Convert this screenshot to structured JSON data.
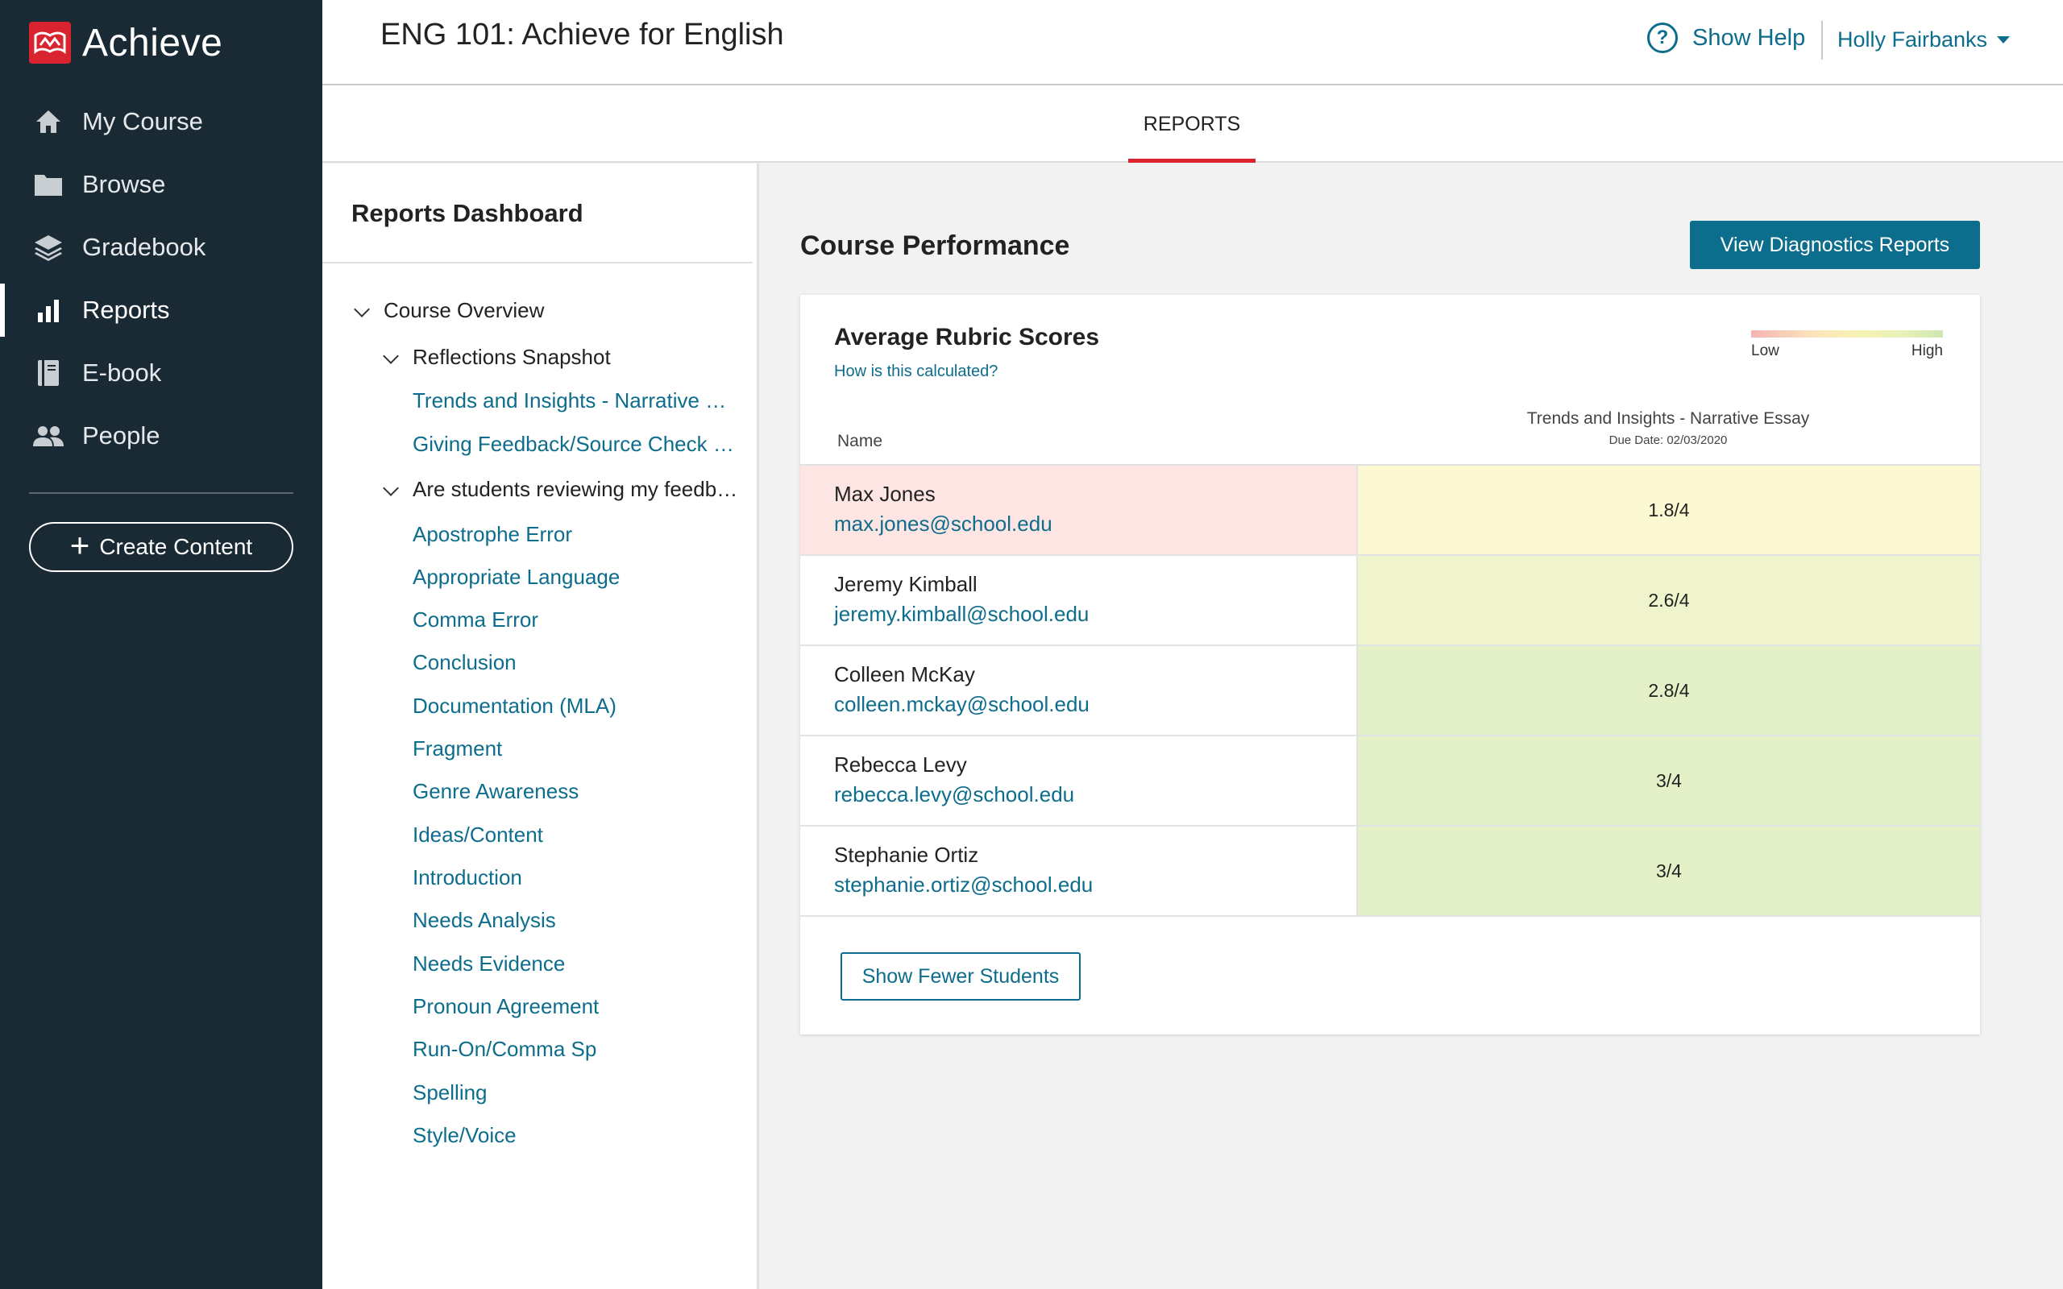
{
  "brand": {
    "logo_text": "Achieve",
    "accent": "#d9232e",
    "sidebar_bg": "#1a2a35",
    "link_color": "#0d6d8c"
  },
  "sidebar": {
    "items": [
      {
        "label": "My Course",
        "icon": "home-icon"
      },
      {
        "label": "Browse",
        "icon": "folder-icon"
      },
      {
        "label": "Gradebook",
        "icon": "layers-icon"
      },
      {
        "label": "Reports",
        "icon": "bar-chart-icon",
        "active": true
      },
      {
        "label": "E-book",
        "icon": "book-icon"
      },
      {
        "label": "People",
        "icon": "people-icon"
      }
    ],
    "create_label": "Create Content"
  },
  "header": {
    "course_title": "ENG 101: Achieve for English",
    "help_label": "Show Help",
    "user_name": "Holly Fairbanks"
  },
  "tabs": [
    {
      "label": "REPORTS",
      "active": true
    }
  ],
  "dashboard": {
    "title": "Reports Dashboard",
    "tree": {
      "overview": "Course Overview",
      "snapshot": "Reflections Snapshot",
      "snapshot_links": [
        "Trends and Insights - Narrative Essay",
        "Giving Feedback/Source Check - Reflection"
      ],
      "feedback_group": "Are students reviewing my feedback?",
      "feedback_links": [
        "Apostrophe Error",
        "Appropriate Language",
        "Comma Error",
        "Conclusion",
        "Documentation (MLA)",
        "Fragment",
        "Genre Awareness",
        "Ideas/Content",
        "Introduction",
        "Needs Analysis",
        "Needs Evidence",
        "Pronoun Agreement",
        "Run-On/Comma Sp",
        "Spelling",
        "Style/Voice"
      ]
    }
  },
  "main": {
    "title": "Course Performance",
    "diagnostics_button": "View Diagnostics Reports",
    "card": {
      "title": "Average Rubric Scores",
      "calc_link": "How is this calculated?",
      "legend_low": "Low",
      "legend_high": "High",
      "name_header": "Name",
      "assignment_title": "Trends and Insights - Narrative Essay",
      "assignment_due": "Due Date: 02/03/2020",
      "students": [
        {
          "name": "Max Jones",
          "email": "max.jones@school.edu",
          "score": "1.8/4",
          "name_bg": "#fde5e4",
          "score_bg": "#fcf8d2"
        },
        {
          "name": "Jeremy Kimball",
          "email": "jeremy.kimball@school.edu",
          "score": "2.6/4",
          "name_bg": "#ffffff",
          "score_bg": "#f0f4cd"
        },
        {
          "name": "Colleen McKay",
          "email": "colleen.mckay@school.edu",
          "score": "2.8/4",
          "name_bg": "#ffffff",
          "score_bg": "#e4f0c7"
        },
        {
          "name": "Rebecca Levy",
          "email": "rebecca.levy@school.edu",
          "score": "3/4",
          "name_bg": "#ffffff",
          "score_bg": "#e4f0c7"
        },
        {
          "name": "Stephanie Ortiz",
          "email": "stephanie.ortiz@school.edu",
          "score": "3/4",
          "name_bg": "#ffffff",
          "score_bg": "#e4f0c7"
        }
      ],
      "fewer_button": "Show Fewer Students"
    }
  }
}
